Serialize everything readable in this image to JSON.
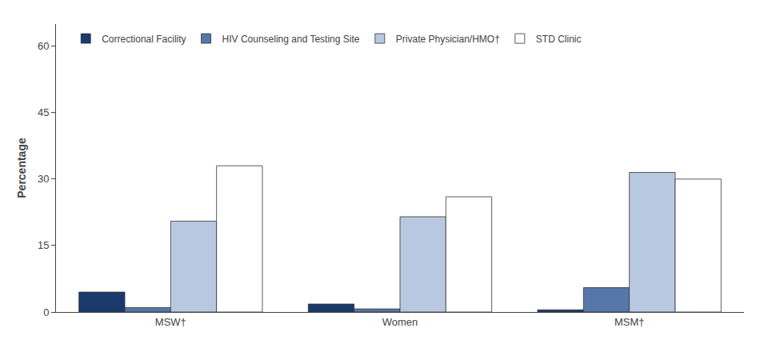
{
  "chart_data": {
    "type": "bar",
    "categories": [
      "MSW†",
      "Women",
      "MSM†"
    ],
    "series": [
      {
        "name": "Correctional Facility",
        "color": "#1a3a6b",
        "values": [
          4.5,
          1.8,
          0.5
        ]
      },
      {
        "name": "HIV Counseling and Testing Site",
        "color": "#5577aa",
        "values": [
          1.0,
          0.7,
          5.5
        ]
      },
      {
        "name": "Private Physician/HMO†",
        "color": "#b8c8e0",
        "values": [
          20.5,
          21.5,
          31.5
        ]
      },
      {
        "name": "STD Clinic",
        "color": "#ffffff",
        "values": [
          33.0,
          26.0,
          30.0
        ]
      }
    ],
    "ylabel": "Percentage",
    "ylim": [
      0,
      65
    ],
    "yticks": [
      0,
      15,
      30,
      45,
      60
    ],
    "grid": false,
    "legend": "upper left"
  }
}
